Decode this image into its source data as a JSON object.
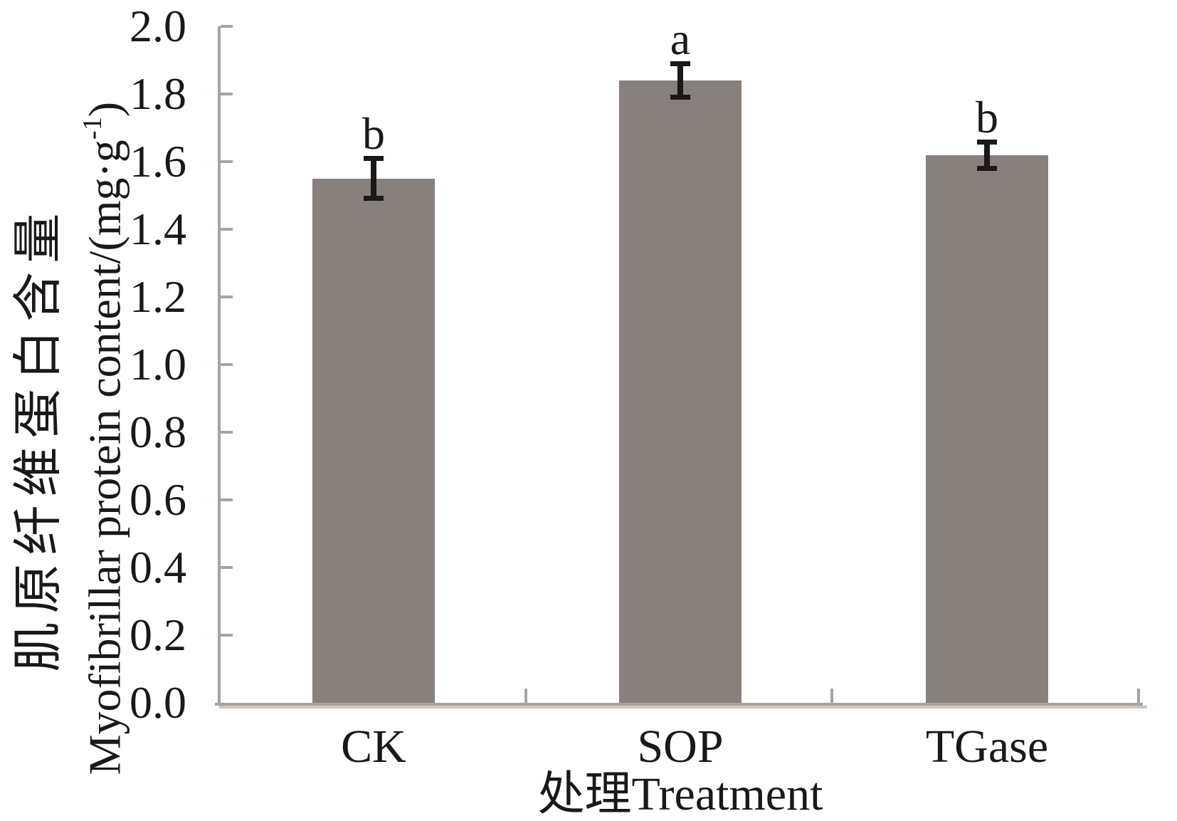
{
  "chart_data": {
    "type": "bar",
    "categories": [
      "CK",
      "SOP",
      "TGase"
    ],
    "values": [
      1.55,
      1.84,
      1.62
    ],
    "errors": [
      0.06,
      0.05,
      0.04
    ],
    "sig_letters": [
      "b",
      "a",
      "b"
    ],
    "title": "",
    "xlabel": "处理Treatment",
    "ylabel_line1": "肌原纤维蛋白含量",
    "ylabel_line2_main": "Myofibrillar protein content/(mg·g",
    "ylabel_line2_sup": "-1",
    "ylabel_line2_close": ")",
    "ylim": [
      0,
      2
    ],
    "ytick_step": 0.2,
    "ytick_labels": [
      "0.0",
      "0.2",
      "0.4",
      "0.6",
      "0.8",
      "1.0",
      "1.2",
      "1.4",
      "1.6",
      "1.8",
      "2.0"
    ],
    "grid": false,
    "legend": "none",
    "colors": {
      "bar_fill": "#87807c",
      "axis": "#a9a29f",
      "axis_shadow": "#cbc5c2",
      "error_bar": "#1b1817",
      "text": "#1b1817"
    }
  }
}
